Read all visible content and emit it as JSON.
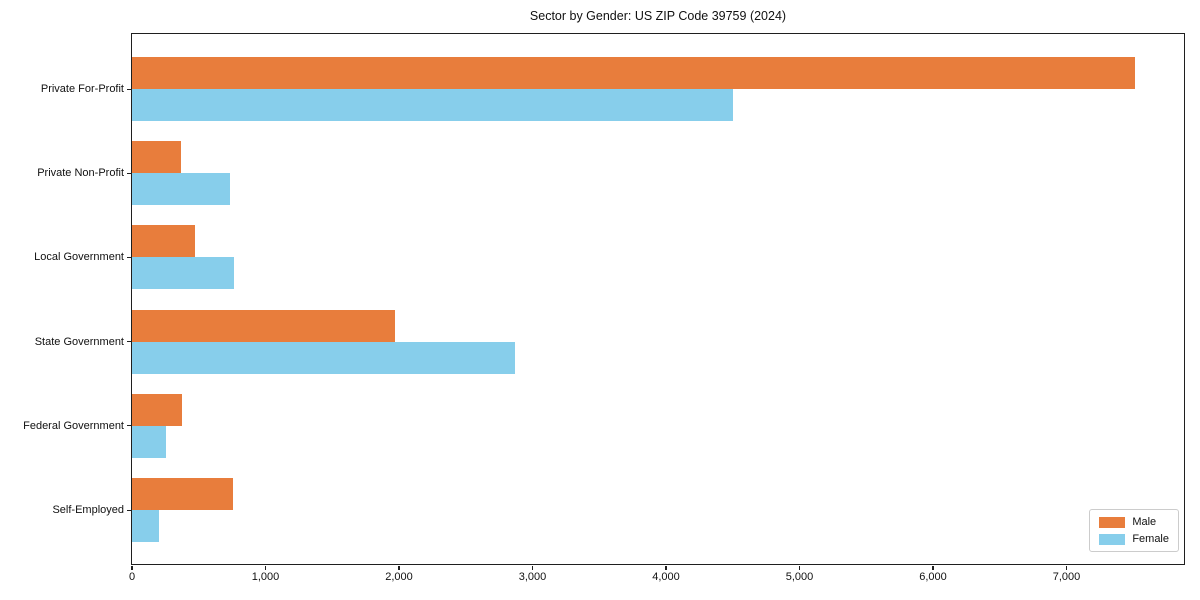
{
  "chart_data": {
    "type": "bar",
    "orientation": "horizontal",
    "title": "Sector by Gender: US ZIP Code 39759 (2024)",
    "categories": [
      "Private For-Profit",
      "Private Non-Profit",
      "Local Government",
      "State Government",
      "Federal Government",
      "Self-Employed"
    ],
    "series": [
      {
        "name": "Male",
        "color": "#e87d3c",
        "values": [
          7510,
          370,
          470,
          1970,
          375,
          755
        ]
      },
      {
        "name": "Female",
        "color": "#87ceeb",
        "values": [
          4500,
          730,
          760,
          2870,
          255,
          200
        ]
      }
    ],
    "xlim": [
      0,
      7880
    ],
    "xticks": [
      0,
      1000,
      2000,
      3000,
      4000,
      5000,
      6000,
      7000
    ],
    "xticklabels": [
      "0",
      "1,000",
      "2,000",
      "3,000",
      "4,000",
      "5,000",
      "6,000",
      "7,000"
    ],
    "ylabel": "",
    "xlabel": "",
    "grid": false,
    "legend": {
      "position": "lower right",
      "labels": [
        "Male",
        "Female"
      ]
    }
  }
}
